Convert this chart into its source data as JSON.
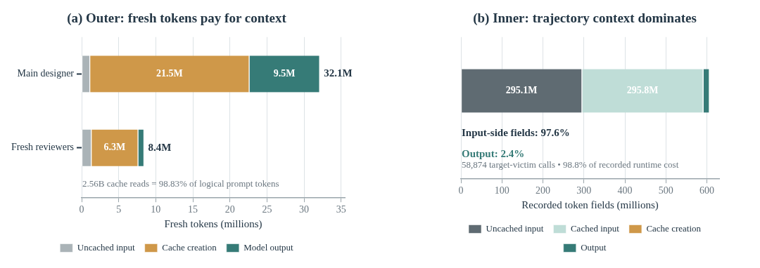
{
  "chart_data": [
    {
      "type": "bar",
      "orientation": "horizontal",
      "stacked": true,
      "title": "(a) Outer: fresh tokens pay for context",
      "xlabel": "Fresh tokens (millions)",
      "categories": [
        "Main designer",
        "Fresh reviewers"
      ],
      "series": [
        {
          "name": "Uncached input",
          "color": "#aab3b7",
          "values": [
            1.1,
            1.3
          ]
        },
        {
          "name": "Cache creation",
          "color": "#cf9849",
          "values": [
            21.5,
            6.3
          ],
          "value_labels": [
            "21.5M",
            "6.3M"
          ]
        },
        {
          "name": "Model output",
          "color": "#367b77",
          "values": [
            9.5,
            0.8
          ],
          "value_labels": [
            "9.5M",
            null
          ]
        }
      ],
      "totals": [
        "32.1M",
        "8.4M"
      ],
      "xlim": [
        0,
        35.5
      ],
      "xticks": [
        0,
        5,
        10,
        15,
        20,
        25,
        30,
        35
      ],
      "grid": "x",
      "legend": "bottom",
      "annotations": [
        "2.56B cache reads = 98.83% of logical prompt tokens"
      ]
    },
    {
      "type": "bar",
      "orientation": "horizontal",
      "stacked": true,
      "title": "(b) Inner: trajectory context dominates",
      "xlabel": "Recorded token fields (millions)",
      "categories": [
        null
      ],
      "series": [
        {
          "name": "Uncached input",
          "color": "#5f6b72",
          "values": [
            295.1
          ],
          "value_labels": [
            "295.1M"
          ]
        },
        {
          "name": "Cached input",
          "color": "#bfddd7",
          "values": [
            295.8
          ],
          "value_labels": [
            "295.8M"
          ]
        },
        {
          "name": "Cache creation",
          "color": "#cf9849",
          "values": [
            null
          ]
        },
        {
          "name": "Output",
          "color": "#367b77",
          "values": [
            15
          ]
        }
      ],
      "xlim": [
        0,
        630
      ],
      "xticks": [
        0,
        100,
        200,
        300,
        400,
        500,
        600
      ],
      "grid": "x",
      "legend": "bottom",
      "annotations": [
        "Input-side fields: 97.6%",
        "Output: 2.4%",
        "58,874 target-victim calls • 98.8% of recorded runtime cost"
      ]
    }
  ]
}
